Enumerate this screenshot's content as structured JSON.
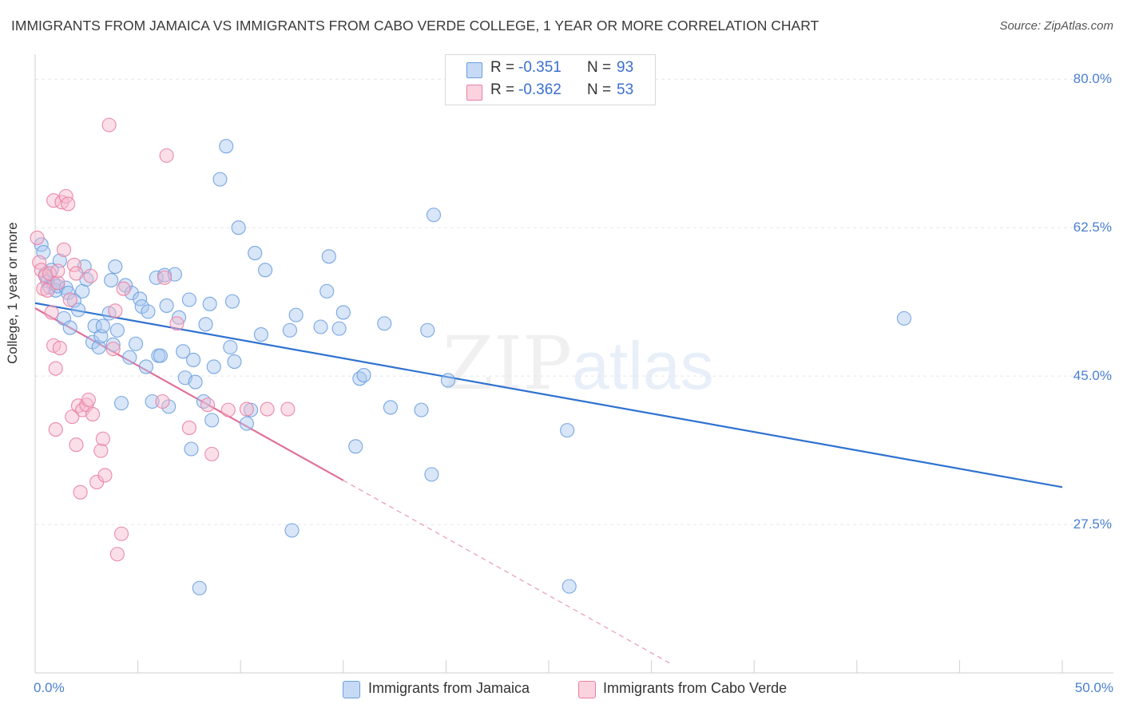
{
  "title": "IMMIGRANTS FROM JAMAICA VS IMMIGRANTS FROM CABO VERDE COLLEGE, 1 YEAR OR MORE CORRELATION CHART",
  "source": "Source: ZipAtlas.com",
  "watermark": {
    "zip": "ZIP",
    "atlas": "atlas"
  },
  "stats": {
    "rows": [
      {
        "r_label": "R =",
        "r_value": "-0.351",
        "n_label": "N =",
        "n_value": "93",
        "color": "#a9c8f0"
      },
      {
        "r_label": "R =",
        "r_value": "-0.362",
        "n_label": "N =",
        "n_value": "53",
        "color": "#f6b8cb"
      }
    ]
  },
  "chart_data": {
    "type": "scatter",
    "title": "IMMIGRANTS FROM JAMAICA VS IMMIGRANTS FROM CABO VERDE COLLEGE, 1 YEAR OR MORE CORRELATION CHART",
    "xlabel": "",
    "ylabel": "College, 1 year or more",
    "xlim": [
      0,
      50
    ],
    "ylim": [
      10,
      82
    ],
    "x_tick_labels": [
      "0.0%",
      "50.0%"
    ],
    "y_ticks": [
      27.5,
      45.0,
      62.5,
      80.0
    ],
    "y_tick_labels": [
      "27.5%",
      "45.0%",
      "62.5%",
      "80.0%"
    ],
    "grid": true,
    "legend": "bottom",
    "series": [
      {
        "name": "Immigrants from Jamaica",
        "color": "#6b9fe0",
        "fill": "#a9c8f0",
        "trend": {
          "x": [
            0,
            50
          ],
          "y": [
            53.6,
            31.9
          ]
        },
        "points": [
          [
            0.3,
            60.5
          ],
          [
            0.4,
            59.6
          ],
          [
            0.5,
            57.0
          ],
          [
            0.6,
            56.2
          ],
          [
            0.7,
            55.5
          ],
          [
            0.8,
            57.5
          ],
          [
            0.9,
            55.9
          ],
          [
            1.0,
            55.1
          ],
          [
            1.1,
            55.6
          ],
          [
            1.2,
            58.6
          ],
          [
            1.4,
            51.8
          ],
          [
            1.5,
            55.4
          ],
          [
            1.6,
            54.8
          ],
          [
            1.7,
            50.7
          ],
          [
            1.9,
            53.9
          ],
          [
            2.1,
            52.8
          ],
          [
            2.3,
            55.0
          ],
          [
            2.4,
            57.9
          ],
          [
            2.5,
            56.4
          ],
          [
            2.8,
            49.0
          ],
          [
            2.9,
            50.9
          ],
          [
            3.1,
            48.4
          ],
          [
            3.2,
            49.7
          ],
          [
            3.3,
            50.9
          ],
          [
            3.6,
            52.4
          ],
          [
            3.7,
            56.3
          ],
          [
            3.8,
            48.7
          ],
          [
            3.9,
            57.9
          ],
          [
            4.0,
            50.4
          ],
          [
            4.2,
            41.8
          ],
          [
            4.4,
            55.7
          ],
          [
            4.6,
            47.2
          ],
          [
            4.7,
            54.8
          ],
          [
            4.9,
            48.8
          ],
          [
            5.1,
            54.1
          ],
          [
            5.2,
            53.2
          ],
          [
            5.4,
            46.1
          ],
          [
            5.5,
            52.6
          ],
          [
            5.7,
            42.0
          ],
          [
            5.9,
            56.6
          ],
          [
            6.0,
            47.4
          ],
          [
            6.1,
            47.4
          ],
          [
            6.3,
            56.9
          ],
          [
            6.4,
            53.3
          ],
          [
            6.5,
            41.4
          ],
          [
            6.8,
            57.0
          ],
          [
            7.0,
            51.9
          ],
          [
            7.2,
            47.9
          ],
          [
            7.3,
            44.8
          ],
          [
            7.5,
            54.0
          ],
          [
            7.6,
            36.4
          ],
          [
            7.7,
            46.9
          ],
          [
            7.8,
            44.3
          ],
          [
            8.0,
            20.0
          ],
          [
            8.2,
            42.0
          ],
          [
            8.3,
            51.1
          ],
          [
            8.5,
            53.5
          ],
          [
            8.6,
            39.8
          ],
          [
            8.7,
            46.1
          ],
          [
            9.0,
            68.2
          ],
          [
            9.3,
            72.1
          ],
          [
            9.5,
            48.4
          ],
          [
            9.6,
            53.8
          ],
          [
            9.7,
            46.7
          ],
          [
            9.9,
            62.5
          ],
          [
            10.3,
            39.4
          ],
          [
            10.5,
            41.0
          ],
          [
            10.7,
            59.5
          ],
          [
            11.0,
            49.9
          ],
          [
            11.2,
            57.5
          ],
          [
            12.4,
            50.4
          ],
          [
            12.5,
            26.8
          ],
          [
            12.7,
            52.2
          ],
          [
            13.9,
            50.8
          ],
          [
            14.2,
            55.0
          ],
          [
            14.3,
            59.1
          ],
          [
            14.8,
            50.6
          ],
          [
            15.0,
            52.5
          ],
          [
            15.6,
            36.7
          ],
          [
            15.8,
            44.7
          ],
          [
            16.0,
            45.1
          ],
          [
            17.0,
            51.2
          ],
          [
            17.3,
            41.3
          ],
          [
            18.8,
            41.0
          ],
          [
            19.1,
            50.4
          ],
          [
            19.3,
            33.4
          ],
          [
            19.4,
            64.0
          ],
          [
            20.1,
            44.5
          ],
          [
            25.9,
            38.6
          ],
          [
            26.0,
            20.2
          ],
          [
            42.3,
            51.8
          ]
        ]
      },
      {
        "name": "Immigrants from Cabo Verde",
        "color": "#e87fa3",
        "fill": "#f6b8cb",
        "trend": {
          "x": [
            0,
            15
          ],
          "y": [
            53.0,
            32.7
          ]
        },
        "trend_extension": {
          "x": [
            15,
            31
          ],
          "y": [
            32.7,
            11.0
          ]
        },
        "points": [
          [
            0.1,
            61.3
          ],
          [
            0.2,
            58.4
          ],
          [
            0.3,
            57.5
          ],
          [
            0.4,
            55.3
          ],
          [
            0.5,
            56.8
          ],
          [
            0.6,
            55.1
          ],
          [
            0.7,
            57.1
          ],
          [
            0.8,
            52.5
          ],
          [
            0.9,
            65.7
          ],
          [
            0.9,
            48.6
          ],
          [
            1.0,
            38.7
          ],
          [
            1.0,
            45.9
          ],
          [
            1.1,
            56.0
          ],
          [
            1.1,
            57.4
          ],
          [
            1.2,
            48.3
          ],
          [
            1.3,
            65.5
          ],
          [
            1.4,
            59.9
          ],
          [
            1.5,
            66.2
          ],
          [
            1.6,
            65.3
          ],
          [
            1.7,
            54.0
          ],
          [
            1.8,
            40.2
          ],
          [
            1.9,
            58.1
          ],
          [
            2.0,
            57.1
          ],
          [
            2.0,
            36.9
          ],
          [
            2.1,
            41.5
          ],
          [
            2.2,
            31.3
          ],
          [
            2.3,
            41.0
          ],
          [
            2.5,
            41.6
          ],
          [
            2.6,
            42.2
          ],
          [
            2.7,
            56.8
          ],
          [
            2.8,
            40.5
          ],
          [
            3.0,
            32.5
          ],
          [
            3.2,
            36.2
          ],
          [
            3.3,
            37.6
          ],
          [
            3.4,
            33.3
          ],
          [
            3.6,
            74.6
          ],
          [
            3.8,
            48.2
          ],
          [
            3.9,
            52.7
          ],
          [
            4.0,
            24.0
          ],
          [
            4.2,
            26.4
          ],
          [
            4.3,
            55.3
          ],
          [
            6.2,
            42.0
          ],
          [
            6.3,
            56.6
          ],
          [
            6.4,
            71.0
          ],
          [
            6.9,
            51.2
          ],
          [
            7.5,
            38.9
          ],
          [
            8.4,
            41.6
          ],
          [
            8.6,
            35.8
          ],
          [
            9.4,
            41.0
          ],
          [
            10.3,
            41.1
          ],
          [
            11.3,
            41.1
          ],
          [
            12.3,
            41.1
          ]
        ]
      }
    ]
  }
}
